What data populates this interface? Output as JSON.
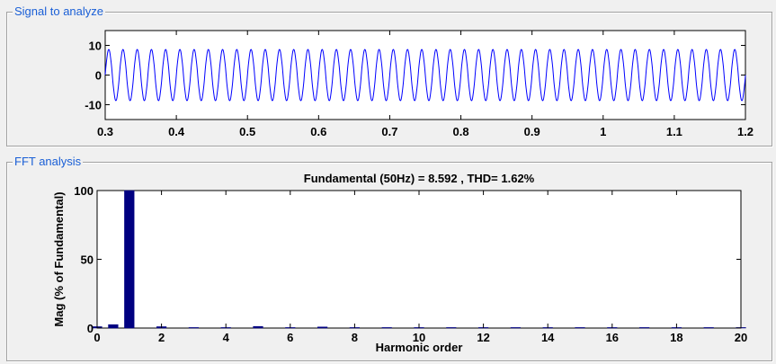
{
  "signal_panel": {
    "title": "Signal to analyze"
  },
  "fft_panel": {
    "title": "FFT analysis",
    "plot_title": "Fundamental (50Hz) = 8.592 , THD= 1.62%"
  },
  "chart_data": [
    {
      "type": "line",
      "title": "",
      "xlabel": "",
      "ylabel": "",
      "xlim": [
        0.3,
        1.2
      ],
      "ylim": [
        -15,
        15
      ],
      "xticks": [
        0.3,
        0.4,
        0.5,
        0.6,
        0.7,
        0.8,
        0.9,
        1.0,
        1.1,
        1.2
      ],
      "xtick_labels": [
        "0.3",
        "0.4",
        "0.5",
        "0.6",
        "0.7",
        "0.8",
        "0.9",
        "1",
        "1.1",
        "1.2"
      ],
      "yticks": [
        -10,
        0,
        10
      ],
      "ytick_labels": [
        "-10",
        "0",
        "10"
      ],
      "series": [
        {
          "color": "#0000ff",
          "frequency_hz": 50,
          "amplitude": 8.592,
          "harmonics": [
            [
              5,
              0.012
            ],
            [
              7,
              0.008
            ]
          ]
        }
      ],
      "grid": false
    },
    {
      "type": "bar",
      "title": "Fundamental (50Hz) = 8.592 , THD= 1.62%",
      "xlabel": "Harmonic order",
      "ylabel": "Mag (% of Fundamental)",
      "xlim": [
        0,
        20
      ],
      "ylim": [
        0,
        100
      ],
      "xticks": [
        0,
        2,
        4,
        6,
        8,
        10,
        12,
        14,
        16,
        18,
        20
      ],
      "xtick_labels": [
        "0",
        "2",
        "4",
        "6",
        "8",
        "10",
        "12",
        "14",
        "16",
        "18",
        "20"
      ],
      "yticks": [
        0,
        50,
        100
      ],
      "ytick_labels": [
        "0",
        "50",
        "100"
      ],
      "categories": [
        0,
        1,
        2,
        3,
        4,
        5,
        6,
        7,
        8,
        9,
        10,
        11,
        12,
        13,
        14,
        15,
        16,
        17,
        18,
        19,
        20
      ],
      "values": [
        1.0,
        100,
        1.0,
        0.3,
        0.1,
        1.2,
        0.1,
        0.8,
        0.1,
        0.3,
        0.1,
        0.2,
        0.1,
        0.2,
        0.1,
        0.1,
        0.1,
        0.1,
        0.1,
        0.1,
        0.1
      ],
      "extra_bars": [
        {
          "x": 0.5,
          "value": 2.5
        }
      ],
      "bar_color": "#000080",
      "grid": false
    }
  ]
}
